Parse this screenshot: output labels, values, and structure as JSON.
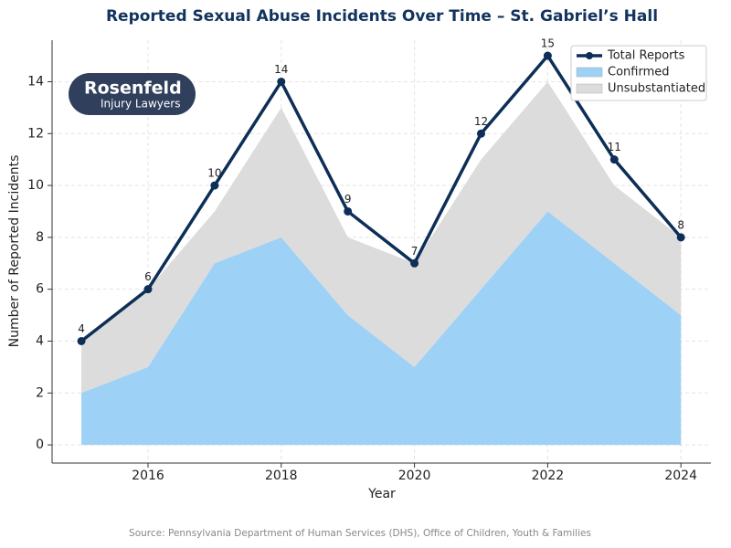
{
  "chart_data": {
    "type": "line",
    "title": "Reported Sexual Abuse Incidents Over Time – St. Gabriel’s Hall",
    "x_label": "Year",
    "y_label": "Number of Reported Incidents",
    "x": [
      2015,
      2016,
      2017,
      2018,
      2019,
      2020,
      2021,
      2022,
      2023,
      2024
    ],
    "series": [
      {
        "name": "Total Reports",
        "type": "line",
        "color": "#0d2e57",
        "values": [
          4,
          6,
          10,
          14,
          9,
          7,
          12,
          15,
          11,
          8
        ]
      },
      {
        "name": "Confirmed",
        "type": "area",
        "color": "#9dd1f5",
        "values": [
          2,
          3,
          7,
          8,
          5,
          3,
          6,
          9,
          7,
          5
        ]
      },
      {
        "name": "Unsubstantiated",
        "type": "area",
        "color": "#dcdcdc",
        "values": [
          2,
          3,
          2,
          5,
          3,
          4,
          5,
          5,
          3,
          3
        ]
      }
    ],
    "xlim": [
      2014.56,
      2024.45
    ],
    "xticks": [
      2016,
      2018,
      2020,
      2022,
      2024
    ],
    "ylim": [
      -0.7,
      15.6
    ],
    "yticks": [
      0,
      2,
      4,
      6,
      8,
      10,
      12,
      14
    ],
    "grid": true,
    "legend": "upper right",
    "logo": {
      "name": "Rosenfeld",
      "tagline": "Injury Lawyers"
    },
    "source": "Source: Pennsylvania Department of Human Services (DHS), Office of Children, Youth & Families"
  }
}
